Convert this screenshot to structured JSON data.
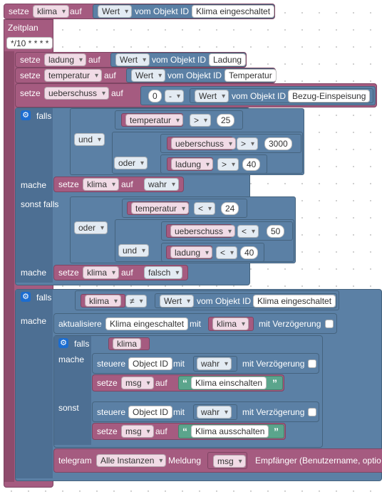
{
  "top": {
    "set_label": "setze",
    "var": "klima",
    "on_label": "auf",
    "value_kind": "Wert",
    "of_object": "vom Objekt ID",
    "object_id": "Klima eingeschaltet"
  },
  "schedule": {
    "label": "Zeitplan",
    "cron": "*/10 * * * *"
  },
  "sets": [
    {
      "set_label": "setze",
      "var": "ladung",
      "on_label": "auf",
      "value_kind": "Wert",
      "of_object": "vom Objekt ID",
      "object_id": "Ladung"
    },
    {
      "set_label": "setze",
      "var": "temperatur",
      "on_label": "auf",
      "value_kind": "Wert",
      "of_object": "vom Objekt ID",
      "object_id": "Temperatur"
    },
    {
      "set_label": "setze",
      "var": "ueberschuss",
      "on_label": "auf",
      "num": "0",
      "op": "-",
      "value_kind": "Wert",
      "of_object": "vom Objekt ID",
      "object_id": "Bezug-Einspeisung"
    }
  ],
  "if1": {
    "if_label": "falls",
    "and_label": "und",
    "or_label": "oder",
    "cond_temp": {
      "var": "temperatur",
      "op": ">",
      "val": "25"
    },
    "cond_ueber": {
      "var": "ueberschuss",
      "op": ">",
      "val": "3000"
    },
    "cond_ladung": {
      "var": "ladung",
      "op": ">",
      "val": "40"
    },
    "do_label": "mache",
    "do_set": {
      "set_label": "setze",
      "var": "klima",
      "on_label": "auf",
      "value": "wahr"
    },
    "elseif_label": "sonst falls",
    "or2_label": "oder",
    "and2_label": "und",
    "cond2_temp": {
      "var": "temperatur",
      "op": "<",
      "val": "24"
    },
    "cond2_ueber": {
      "var": "ueberschuss",
      "op": "<",
      "val": "50"
    },
    "cond2_ladung": {
      "var": "ladung",
      "op": "<",
      "val": "40"
    },
    "do2_label": "mache",
    "do2_set": {
      "set_label": "setze",
      "var": "klima",
      "on_label": "auf",
      "value": "falsch"
    }
  },
  "if2": {
    "if_label": "falls",
    "var": "klima",
    "op": "≠",
    "value_kind": "Wert",
    "of_object": "vom Objekt ID",
    "object_id": "Klima eingeschaltet",
    "do_label": "mache",
    "update": {
      "label": "aktualisiere",
      "object": "Klima eingeschaltet",
      "with": "mit",
      "var": "klima",
      "delay_label": "mit Verzögerung"
    },
    "inner_if": {
      "if_label": "falls",
      "var": "klima",
      "do_label": "mache",
      "ctrl1": {
        "label": "steuere",
        "obj": "Object ID",
        "with": "mit",
        "value": "wahr",
        "delay_label": "mit Verzögerung"
      },
      "set1": {
        "set_label": "setze",
        "var": "msg",
        "on_label": "auf",
        "text": "Klima einschalten"
      },
      "else_label": "sonst",
      "ctrl2": {
        "label": "steuere",
        "obj": "Object ID",
        "with": "mit",
        "value": "wahr",
        "delay_label": "mit Verzögerung"
      },
      "set2": {
        "set_label": "setze",
        "var": "msg",
        "on_label": "auf",
        "text": "Klima ausschalten"
      }
    },
    "telegram": {
      "label": "telegram",
      "instance": "Alle Instanzen",
      "message_label": "Meldung",
      "var": "msg",
      "recipient_label": "Empfänger (Benutzername, optio"
    }
  }
}
